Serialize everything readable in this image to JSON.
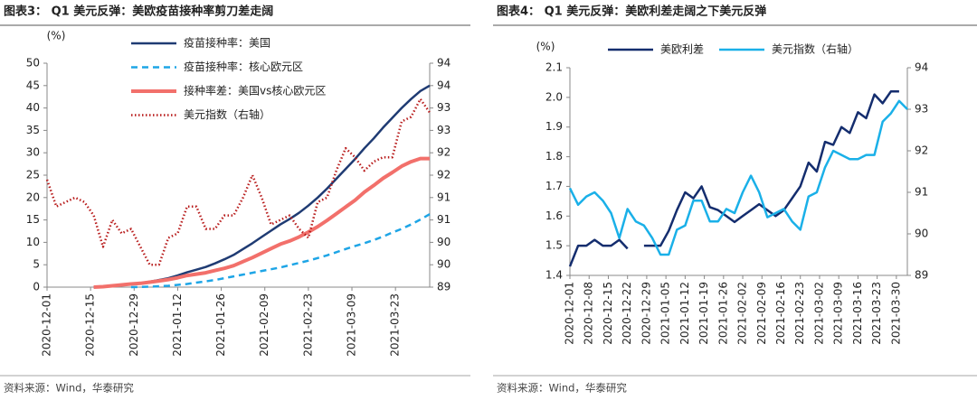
{
  "chart_data": [
    {
      "type": "line",
      "title": "图表3：  Q1 美元反弹：美欧疫苗接种率剪刀差走阔",
      "ylabel": "(%)",
      "source": "资料来源：Wind，华泰研究",
      "x": [
        "2020-12-01",
        "2020-12-04",
        "2020-12-07",
        "2020-12-10",
        "2020-12-13",
        "2020-12-16",
        "2020-12-19",
        "2020-12-22",
        "2020-12-25",
        "2020-12-28",
        "2020-12-31",
        "2021-01-03",
        "2021-01-06",
        "2021-01-09",
        "2021-01-12",
        "2021-01-15",
        "2021-01-18",
        "2021-01-21",
        "2021-01-24",
        "2021-01-27",
        "2021-01-30",
        "2021-02-02",
        "2021-02-05",
        "2021-02-08",
        "2021-02-11",
        "2021-02-14",
        "2021-02-17",
        "2021-02-20",
        "2021-02-23",
        "2021-02-26",
        "2021-03-01",
        "2021-03-04",
        "2021-03-07",
        "2021-03-10",
        "2021-03-13",
        "2021-03-16",
        "2021-03-19",
        "2021-03-22",
        "2021-03-25",
        "2021-03-28",
        "2021-03-31",
        "2021-04-03"
      ],
      "xlim": [
        "2020-12-01",
        "2021-04-03"
      ],
      "xticks": [
        "2020-12-01",
        "2020-12-15",
        "2020-12-29",
        "2021-01-12",
        "2021-01-26",
        "2021-02-09",
        "2021-02-23",
        "2021-03-09",
        "2021-03-23"
      ],
      "ylim": [
        0,
        50
      ],
      "yticks": [
        0,
        5,
        10,
        15,
        20,
        25,
        30,
        35,
        40,
        45,
        50
      ],
      "y2lim": [
        89,
        94
      ],
      "y2ticks": [
        89,
        {
          "value": 89.5,
          "label": "90"
        },
        90,
        {
          "value": 90.5,
          "label": "91"
        },
        91,
        {
          "value": 91.5,
          "label": "92"
        },
        92,
        {
          "value": 92.5,
          "label": "93"
        },
        93,
        {
          "value": 93.5,
          "label": "94"
        },
        94
      ],
      "legend": "top-left",
      "series": [
        {
          "name": "疫苗接种率：美国",
          "color": "#1f3b73",
          "dash": "solid",
          "values": [
            null,
            null,
            null,
            null,
            null,
            0,
            0.1,
            0.3,
            0.5,
            0.7,
            0.9,
            1.2,
            1.6,
            2.0,
            2.6,
            3.3,
            3.9,
            4.5,
            5.3,
            6.2,
            7.2,
            8.5,
            9.8,
            11.2,
            12.6,
            14.0,
            15.2,
            16.6,
            18.2,
            20.0,
            22.0,
            24.2,
            26.4,
            28.6,
            31.0,
            33.2,
            35.6,
            37.8,
            40.0,
            42.0,
            43.8,
            45.0
          ]
        },
        {
          "name": "疫苗接种率：核心欧元区",
          "color": "#1ea5e6",
          "dash": "dashed",
          "values": [
            null,
            null,
            null,
            null,
            null,
            null,
            null,
            null,
            null,
            0,
            0.05,
            0.1,
            0.2,
            0.3,
            0.5,
            0.7,
            1.0,
            1.3,
            1.6,
            2.0,
            2.4,
            2.8,
            3.2,
            3.6,
            4.0,
            4.4,
            4.9,
            5.4,
            5.9,
            6.5,
            7.1,
            7.8,
            8.5,
            9.2,
            9.8,
            10.5,
            11.3,
            12.2,
            13.0,
            14.0,
            15.1,
            16.3
          ]
        },
        {
          "name": "接种率差：美国vs核心欧元区",
          "color": "#f2706b",
          "dash": "thick",
          "values": [
            null,
            null,
            null,
            null,
            null,
            0,
            0.1,
            0.3,
            0.5,
            0.7,
            0.85,
            1.1,
            1.4,
            1.7,
            2.1,
            2.6,
            2.9,
            3.2,
            3.7,
            4.2,
            4.8,
            5.7,
            6.6,
            7.6,
            8.6,
            9.6,
            10.3,
            11.2,
            12.3,
            13.5,
            14.9,
            16.4,
            17.9,
            19.4,
            21.2,
            22.7,
            24.3,
            25.6,
            27.0,
            28.0,
            28.7,
            28.7
          ]
        },
        {
          "name": "美元指数（右轴）",
          "color": "#b81c1c",
          "dash": "dotted",
          "axis": "y2",
          "values": [
            91.4,
            90.8,
            90.9,
            91.0,
            90.9,
            90.6,
            89.9,
            90.5,
            90.2,
            90.3,
            89.9,
            89.5,
            89.5,
            90.1,
            90.2,
            90.8,
            90.8,
            90.3,
            90.3,
            90.6,
            90.6,
            91.0,
            91.5,
            91.0,
            90.4,
            90.5,
            90.6,
            90.3,
            90.1,
            90.9,
            91.0,
            91.6,
            92.1,
            91.9,
            91.6,
            91.8,
            91.9,
            91.9,
            92.7,
            92.8,
            93.2,
            92.9
          ]
        }
      ]
    },
    {
      "type": "line",
      "title": "图表4：  Q1 美元反弹：美欧利差走阔之下美元反弹",
      "ylabel": "(%)",
      "source": "资料来源：Wind，华泰研究",
      "x": [
        "2020-12-01",
        "2020-12-04",
        "2020-12-07",
        "2020-12-10",
        "2020-12-13",
        "2020-12-16",
        "2020-12-19",
        "2020-12-22",
        "2020-12-25",
        "2020-12-28",
        "2020-12-31",
        "2021-01-03",
        "2021-01-06",
        "2021-01-09",
        "2021-01-12",
        "2021-01-15",
        "2021-01-18",
        "2021-01-21",
        "2021-01-24",
        "2021-01-27",
        "2021-01-30",
        "2021-02-02",
        "2021-02-05",
        "2021-02-08",
        "2021-02-11",
        "2021-02-14",
        "2021-02-17",
        "2021-02-20",
        "2021-02-23",
        "2021-02-26",
        "2021-03-01",
        "2021-03-04",
        "2021-03-07",
        "2021-03-10",
        "2021-03-13",
        "2021-03-16",
        "2021-03-19",
        "2021-03-22",
        "2021-03-25",
        "2021-03-28",
        "2021-03-31",
        "2021-04-03"
      ],
      "xlim": [
        "2020-12-01",
        "2021-04-03"
      ],
      "xticks": [
        "2020-12-01",
        "2020-12-08",
        "2020-12-15",
        "2020-12-22",
        "2020-12-29",
        "2021-01-05",
        "2021-01-12",
        "2021-01-19",
        "2021-01-26",
        "2021-02-02",
        "2021-02-09",
        "2021-02-16",
        "2021-02-23",
        "2021-03-02",
        "2021-03-09",
        "2021-03-16",
        "2021-03-23",
        "2021-03-30"
      ],
      "ylim": [
        1.4,
        2.1
      ],
      "yticks": [
        1.4,
        1.5,
        1.6,
        1.7,
        1.8,
        1.9,
        {
          "value": 2,
          "label": "2.0"
        },
        2.1
      ],
      "y2lim": [
        89,
        94
      ],
      "y2ticks": [
        89,
        90,
        91,
        92,
        93,
        94
      ],
      "legend": "top",
      "series": [
        {
          "name": "美欧利差",
          "color": "#142d6e",
          "dash": "solid",
          "values": [
            1.43,
            1.5,
            1.5,
            1.52,
            1.5,
            1.5,
            1.52,
            1.49,
            null,
            1.5,
            1.5,
            1.5,
            1.55,
            1.62,
            1.68,
            1.66,
            1.7,
            1.63,
            1.62,
            1.6,
            1.58,
            1.6,
            1.62,
            1.64,
            1.62,
            1.6,
            1.62,
            1.66,
            1.7,
            1.78,
            1.75,
            1.85,
            1.84,
            1.9,
            1.88,
            1.95,
            1.93,
            2.01,
            1.98,
            2.02,
            2.02,
            null
          ]
        },
        {
          "name": "美元指数（右轴）",
          "color": "#1ab0e8",
          "dash": "solid",
          "axis": "y2",
          "values": [
            91.1,
            90.7,
            90.9,
            91.0,
            90.8,
            90.5,
            89.9,
            90.6,
            90.3,
            90.2,
            89.9,
            89.5,
            89.5,
            90.1,
            90.2,
            90.8,
            90.8,
            90.3,
            90.3,
            90.6,
            90.5,
            91.0,
            91.4,
            91.0,
            90.4,
            90.5,
            90.6,
            90.3,
            90.1,
            90.9,
            91.0,
            91.6,
            92.0,
            91.9,
            91.8,
            91.8,
            91.9,
            91.9,
            92.7,
            92.9,
            93.2,
            93.0
          ]
        }
      ]
    }
  ]
}
